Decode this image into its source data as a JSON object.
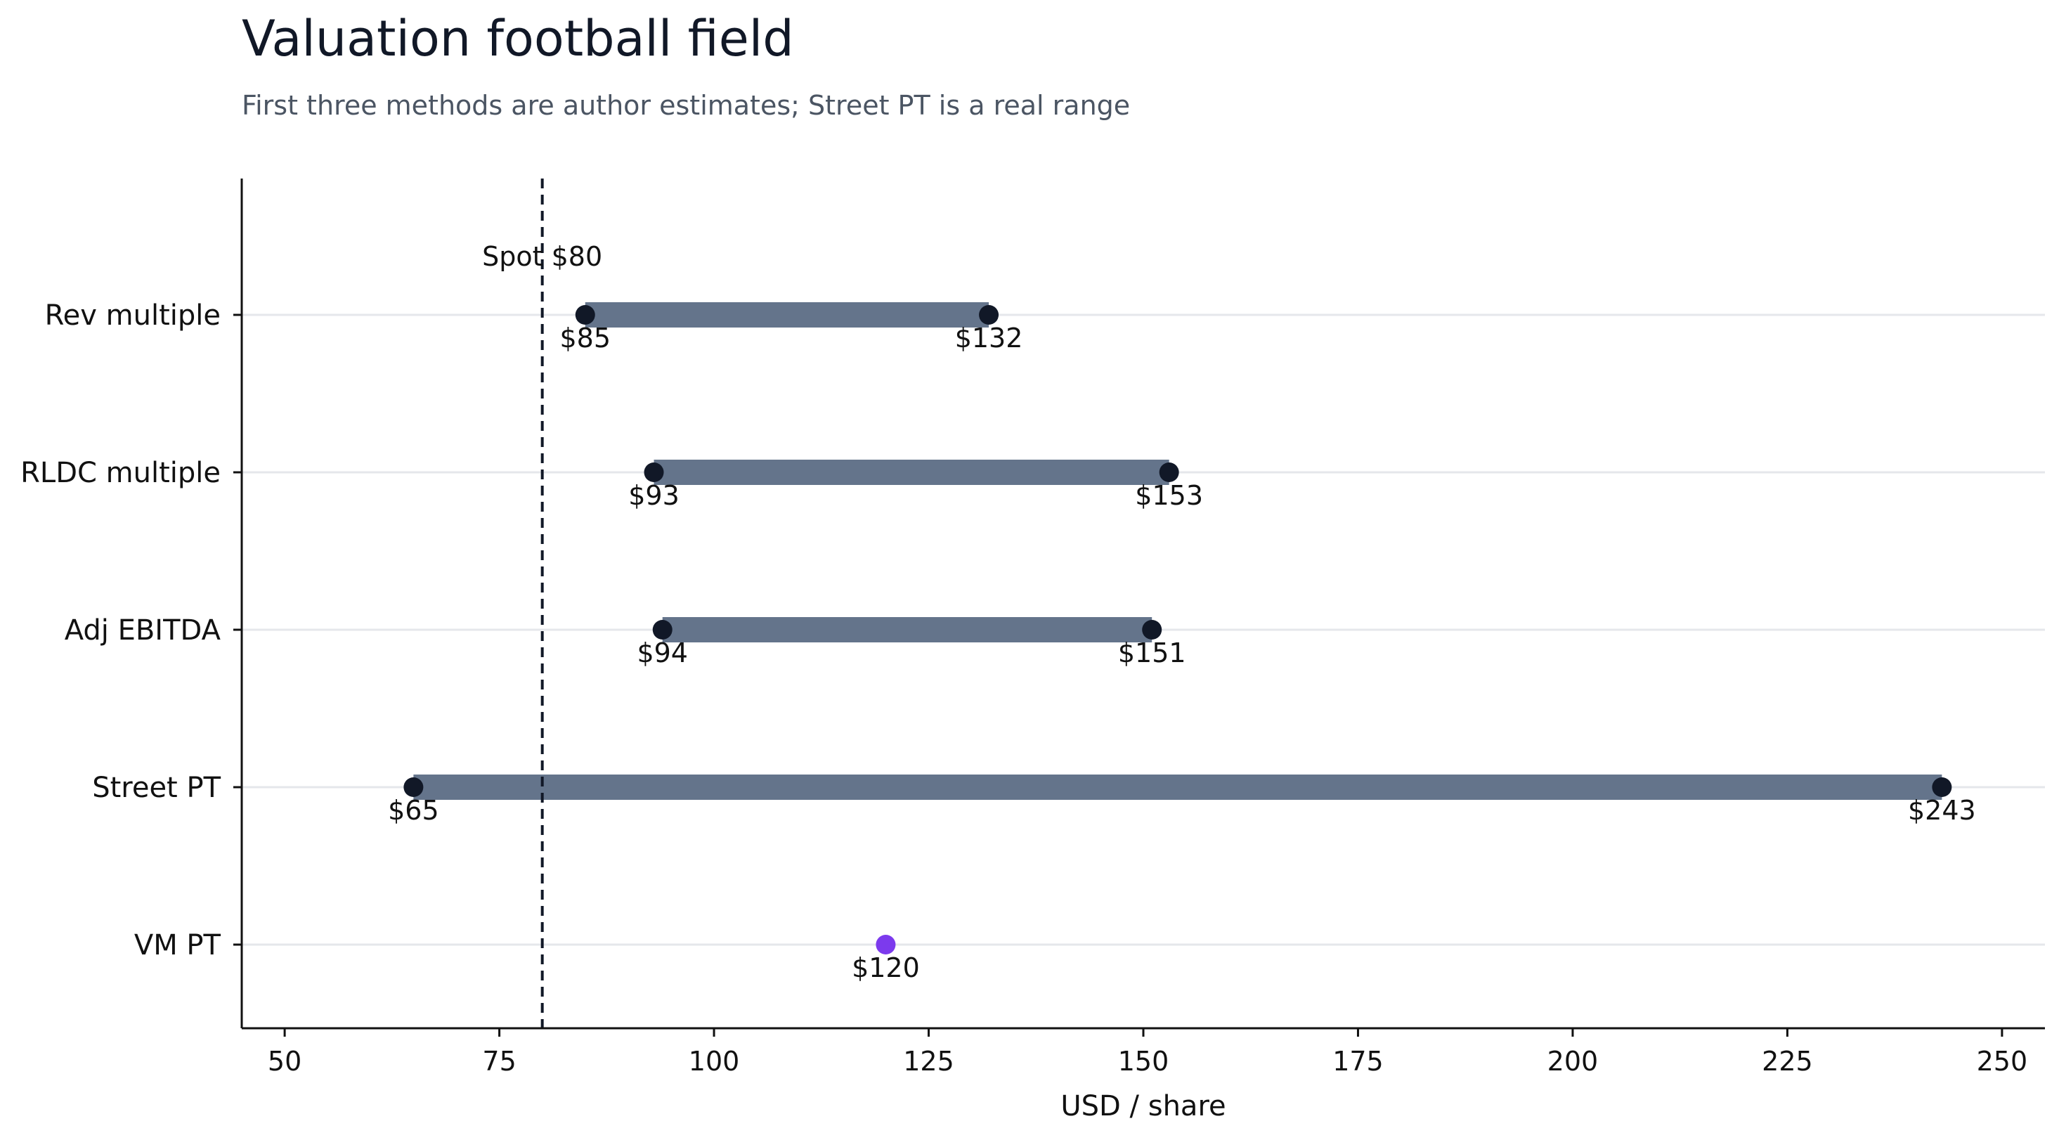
{
  "title": "Valuation football field",
  "subtitle": "First three methods are author estimates; Street PT is a real range",
  "colors": {
    "range_bar": "#64748b",
    "endpoint": "#111827",
    "point_highlight": "#7c3aed",
    "reference_line": "#111827",
    "gridline": "#e5e7eb",
    "axis": "#111111"
  },
  "chart_data": {
    "type": "range",
    "title": "Valuation football field",
    "subtitle": "First three methods are author estimates; Street PT is a real range",
    "xlabel": "USD / share",
    "ylabel": "",
    "xlim": [
      45,
      255
    ],
    "xticks": [
      50,
      75,
      100,
      125,
      150,
      175,
      200,
      225,
      250
    ],
    "grid": "horizontal",
    "categories": [
      "Rev multiple",
      "RLDC multiple",
      "Adj EBITDA",
      "Street PT",
      "VM PT"
    ],
    "series": [
      {
        "category": "Rev multiple",
        "low": 85,
        "high": 132,
        "low_label": "$85",
        "high_label": "$132"
      },
      {
        "category": "RLDC multiple",
        "low": 93,
        "high": 153,
        "low_label": "$93",
        "high_label": "$153"
      },
      {
        "category": "Adj EBITDA",
        "low": 94,
        "high": 151,
        "low_label": "$94",
        "high_label": "$151"
      },
      {
        "category": "Street PT",
        "low": 65,
        "high": 243,
        "low_label": "$65",
        "high_label": "$243"
      },
      {
        "category": "VM PT",
        "value": 120,
        "label": "$120"
      }
    ],
    "reference_line": {
      "value": 80,
      "label": "Spot $80"
    }
  }
}
